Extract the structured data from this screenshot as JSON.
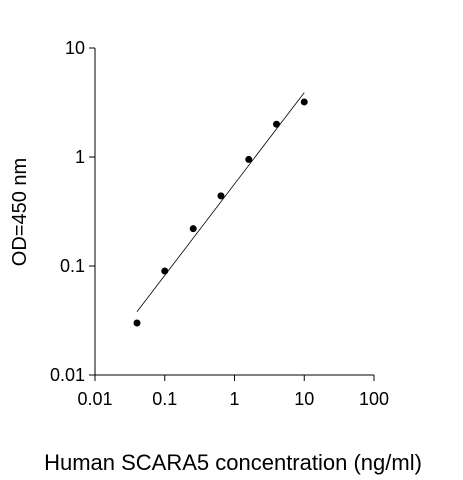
{
  "chart_data": {
    "type": "scatter",
    "x_label": "Human SCARA5 concentration (ng/ml)",
    "y_label": "OD=450 nm",
    "x": [
      0.04,
      0.1,
      0.256,
      0.64,
      1.6,
      4,
      10
    ],
    "values": [
      0.03,
      0.09,
      0.22,
      0.44,
      0.95,
      2.0,
      3.2
    ],
    "color": "#000000",
    "fit": {
      "x": [
        0.04,
        10
      ],
      "values": [
        0.038,
        3.9
      ]
    },
    "x_log": true,
    "y_log": true,
    "xlim": [
      0.01,
      100
    ],
    "xticks": [
      0.01,
      0.1,
      1,
      10,
      100
    ],
    "ylim": [
      0.01,
      10
    ],
    "yticks": [
      0.01,
      0.1,
      1,
      10
    ],
    "grid": false
  }
}
